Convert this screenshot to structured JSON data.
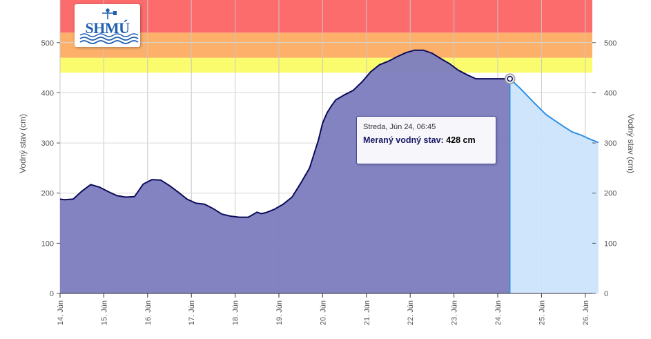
{
  "chart_data": {
    "type": "area",
    "ylabel": "Vodný stav (cm)",
    "ylabel_right": "Vodný stav (cm)",
    "ylim": [
      0,
      520
    ],
    "y_ticks": [
      0,
      100,
      200,
      300,
      400,
      500
    ],
    "x_ticks": [
      "14. Jún",
      "15. Jún",
      "16. Jún",
      "17. Jún",
      "18. Jún",
      "19. Jún",
      "20. Jún",
      "21. Jún",
      "22. Jún",
      "23. Jún",
      "24. Jún",
      "25. Jún",
      "26. Jún"
    ],
    "x_unit": "days",
    "grid": true,
    "bands": [
      {
        "from": 440,
        "to": 470,
        "color": "#fbfb6e"
      },
      {
        "from": 470,
        "to": 520,
        "color": "#fcb06a"
      },
      {
        "from": 520,
        "to": 600,
        "color": "#fc6c6c"
      }
    ],
    "series": [
      {
        "color": "#0a0a5a",
        "fill": "#7f7fbf",
        "x": [
          0,
          0.1,
          0.3,
          0.5,
          0.7,
          0.9,
          1.1,
          1.3,
          1.5,
          1.7,
          1.9,
          2.1,
          2.3,
          2.5,
          2.7,
          2.9,
          3.1,
          3.3,
          3.5,
          3.7,
          3.9,
          4.1,
          4.3,
          4.5,
          4.6,
          4.7,
          4.9,
          5.1,
          5.3,
          5.5,
          5.7,
          5.9,
          6.0,
          6.1,
          6.2,
          6.3,
          6.5,
          6.7,
          6.9,
          7.1,
          7.3,
          7.5,
          7.7,
          7.9,
          8.1,
          8.3,
          8.5,
          8.7,
          8.9,
          9.1,
          9.3,
          9.5,
          9.7,
          9.9,
          10.05,
          10.2795
        ],
        "y": [
          188,
          187,
          188,
          204,
          217,
          212,
          203,
          195,
          192,
          193,
          218,
          227,
          226,
          215,
          202,
          188,
          180,
          178,
          169,
          158,
          154,
          152,
          152,
          162,
          159,
          161,
          168,
          178,
          192,
          220,
          250,
          305,
          340,
          360,
          374,
          386,
          396,
          405,
          422,
          442,
          456,
          463,
          472,
          480,
          485,
          485,
          479,
          468,
          458,
          445,
          436,
          428,
          428,
          428,
          428,
          428
        ]
      },
      {
        "color": "#2b8fe8",
        "fill": "#cce4fb",
        "x": [
          10.2795,
          10.5,
          10.7,
          10.9,
          11.1,
          11.3,
          11.5,
          11.7,
          11.9,
          12.1,
          12.3
        ],
        "y": [
          428,
          410,
          392,
          374,
          357,
          345,
          333,
          322,
          316,
          308,
          301
        ]
      }
    ],
    "tooltip": {
      "date": "Streda, Jún 24, 06:45",
      "label": "Meraný vodný stav:",
      "value": "428 cm"
    },
    "logo": "SHMÚ"
  }
}
